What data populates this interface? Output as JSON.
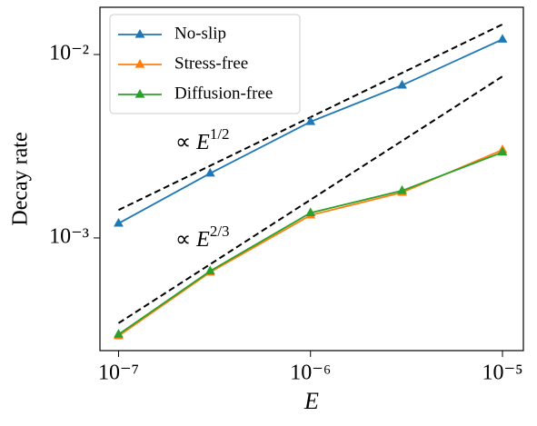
{
  "chart_data": {
    "type": "line",
    "log_x": true,
    "log_y": true,
    "x_label": "E",
    "y_label": "Decay rate",
    "x": [
      1e-07,
      3e-07,
      1e-06,
      3e-06,
      1e-05
    ],
    "series": [
      {
        "name": "No-slip",
        "color": "#1f77b4",
        "marker": "triangle",
        "values": [
          0.0012,
          0.00225,
          0.0043,
          0.0068,
          0.0121
        ]
      },
      {
        "name": "Stress-free",
        "color": "#ff7f0e",
        "marker": "triangle",
        "values": [
          0.000292,
          0.00065,
          0.00133,
          0.00177,
          0.00302
        ]
      },
      {
        "name": "Diffusion-free",
        "color": "#2ca02c",
        "marker": "triangle",
        "values": [
          0.000298,
          0.00066,
          0.00137,
          0.00181,
          0.00293
        ]
      }
    ],
    "reference_lines": [
      {
        "color": "#000000",
        "x": [
          1e-07,
          1e-05
        ],
        "values": [
          0.00142,
          0.0146
        ]
      },
      {
        "color": "#000000",
        "x": [
          1e-07,
          1e-05
        ],
        "values": [
          0.000343,
          0.0076
        ]
      }
    ],
    "annotations": [
      {
        "prefix": "∝ ",
        "var": "E",
        "sup": "1/2"
      },
      {
        "prefix": "∝ ",
        "var": "E",
        "sup": "2/3"
      }
    ],
    "xlim": [
      8e-08,
      1.285e-05
    ],
    "ylim": [
      0.000243,
      0.0181
    ],
    "xticks": [
      {
        "value": 1e-07,
        "label": "10⁻⁷"
      },
      {
        "value": 1e-06,
        "label": "10⁻⁶"
      },
      {
        "value": 1e-05,
        "label": "10⁻⁵"
      }
    ],
    "yticks": [
      {
        "value": 0.001,
        "label": "10⁻³"
      },
      {
        "value": 0.01,
        "label": "10⁻²"
      }
    ],
    "legend": "upper left",
    "grid": false
  }
}
